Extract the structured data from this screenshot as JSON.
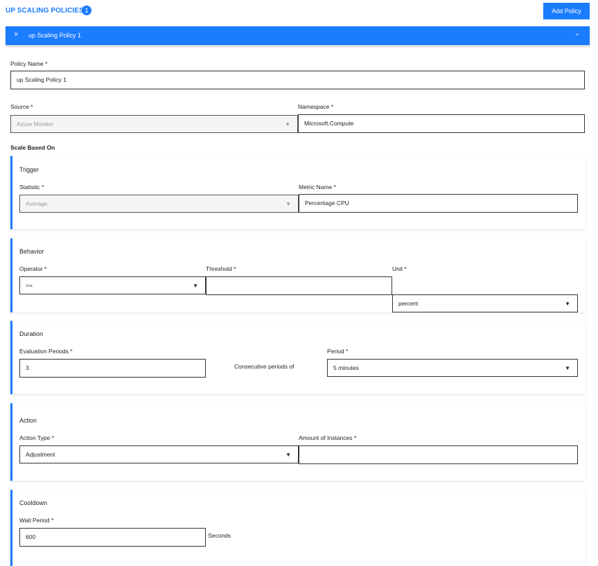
{
  "header": {
    "title": "UP SCALING POLICIES",
    "count": "1",
    "add_button": "Add Policy"
  },
  "policy_bar": {
    "close_icon": "×",
    "name": "up Scaling Policy 1",
    "chevron": "⌄"
  },
  "form": {
    "policy_name": {
      "label": "Policy Name *",
      "value": "up Scaling Policy 1"
    },
    "source": {
      "label": "Source *",
      "value": "Azure Monitor",
      "disabled": true
    },
    "namespace": {
      "label": "Namespace *",
      "value": "Microsoft.Compute"
    },
    "scale_based_on": "Scale Based On",
    "trigger": {
      "title": "Trigger",
      "statistic": {
        "label": "Statistic *",
        "value": "Average",
        "disabled": true
      },
      "metric_name": {
        "label": "Metric Name *",
        "value": "Percentage CPU"
      }
    },
    "behavior": {
      "title": "Behavior",
      "operator": {
        "label": "Operator *",
        "value": ">="
      },
      "threshold": {
        "label": "Threshold *",
        "value": ""
      },
      "unit": {
        "label": "Unit *",
        "value": "percent"
      }
    },
    "duration": {
      "title": "Duration",
      "evaluation_periods": {
        "label": "Evaluation Periods *",
        "value": "3"
      },
      "consecutive_text": "Consecutive periods of",
      "period": {
        "label": "Period *",
        "value": "5 minutes"
      }
    },
    "action": {
      "title": "Action",
      "action_type": {
        "label": "Action Type *",
        "value": "Adjustment"
      },
      "amount": {
        "label": "Amount of Instances *",
        "value": ""
      }
    },
    "cooldown": {
      "title": "Cooldown",
      "wait_period": {
        "label": "Wait Period *",
        "value": "600"
      },
      "unit_text": "Seconds"
    }
  },
  "colors": {
    "accent": "#1a7cff"
  }
}
